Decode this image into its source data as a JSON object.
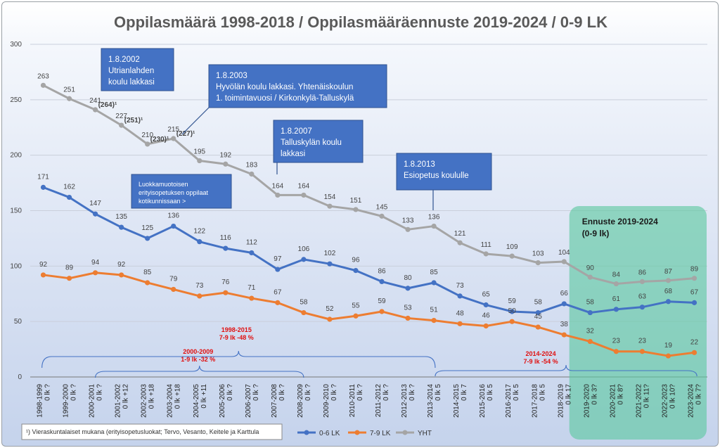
{
  "chart_data": {
    "type": "line",
    "title": "Oppilasmäärä 1998-2018 / Oppilasmääräennuste 2019-2024 / 0-9 LK",
    "ylim": [
      0,
      300
    ],
    "yticks": [
      "0",
      "50",
      "100",
      "150",
      "200",
      "250",
      "300"
    ],
    "grid": true,
    "legend_position": "bottom",
    "categories": [
      "1998-1999",
      "1999-2000",
      "2000-2001",
      "2001-2002",
      "2002-2003",
      "2003-2004",
      "2004-2005",
      "2005-2006",
      "2006-2007",
      "2007-2008",
      "2008-2009",
      "2009-2010",
      "2010-2011",
      "2011-2012",
      "2012-2013",
      "2013-2014",
      "2014-2015",
      "2015-2016",
      "2016-2017",
      "2017-2018",
      "2018-2019",
      "2019-2020",
      "2020-2021",
      "2021-2022",
      "2022-2023",
      "2023-2024"
    ],
    "category_sublabels": [
      "0 lk ?",
      "0 lk ?",
      "0 lk ?",
      "0 lk +12",
      "0 lk +18",
      "0 lk +18",
      "0 lk +11",
      "0 lk ?",
      "0 lk ?",
      "0 lk ?",
      "0 lk ?",
      "0 lk ?",
      "0 lk ?",
      "0 lk ?",
      "0 lk ?",
      "0 lk 5",
      "0 lk 7",
      "0 lk 5",
      "0 lk 5",
      "0 lk 5",
      "0 lk 17",
      "0 lk 3?",
      "0 lk 8?",
      "0 lk 11?",
      "0 lk 10?",
      "0 lk 7?"
    ],
    "series": [
      {
        "name": "0-6 LK",
        "color": "#4472c4",
        "values": [
          171,
          162,
          147,
          135,
          125,
          136,
          122,
          116,
          112,
          97,
          106,
          102,
          96,
          86,
          80,
          85,
          73,
          65,
          59,
          58,
          66,
          58,
          61,
          63,
          68,
          67
        ],
        "labels": [
          "171",
          "162",
          "147",
          "135",
          "125",
          "136",
          "122",
          "116",
          "112",
          "97",
          "106",
          "102",
          "96",
          "86",
          "80",
          "85",
          "73",
          "65",
          "59",
          "58",
          "66",
          "58",
          "61",
          "63",
          "68",
          "67"
        ]
      },
      {
        "name": "7-9 LK",
        "color": "#ed7d31",
        "values": [
          92,
          89,
          94,
          92,
          85,
          79,
          73,
          76,
          71,
          67,
          58,
          52,
          55,
          59,
          53,
          51,
          48,
          46,
          50,
          45,
          38,
          32,
          23,
          23,
          19,
          22
        ],
        "labels": [
          "92",
          "89",
          "94",
          "92",
          "85",
          "79",
          "73",
          "76",
          "71",
          "67",
          "58",
          "52",
          "55",
          "59",
          "53",
          "51",
          "48",
          "46",
          "50",
          "45",
          "38",
          "32",
          "23",
          "23",
          "19",
          "22"
        ]
      },
      {
        "name": "YHT",
        "color": "#a5a5a5",
        "values": [
          263,
          251,
          241,
          227,
          210,
          215,
          195,
          192,
          183,
          164,
          164,
          154,
          151,
          145,
          133,
          136,
          121,
          111,
          109,
          103,
          104,
          90,
          84,
          86,
          87,
          89
        ],
        "labels": [
          "263",
          "251",
          "241",
          "227",
          "210",
          "215",
          "195",
          "192",
          "183",
          "164",
          "164",
          "154",
          "151",
          "145",
          "133",
          "136",
          "121",
          "111",
          "109",
          "103",
          "104",
          "90",
          "84",
          "86",
          "87",
          "89"
        ]
      }
    ],
    "extra_labels": [
      {
        "text": "(264)¹",
        "at": 2,
        "value": 241
      },
      {
        "text": "(251)¹",
        "at": 3,
        "value": 227
      },
      {
        "text": "(230)¹",
        "at": 4,
        "value": 210
      },
      {
        "text": "(227)¹",
        "at": 5,
        "value": 215
      }
    ],
    "annotations": [
      {
        "lines": [
          "1.8.2002",
          "Utrianlahden",
          "koulu lakkasi"
        ]
      },
      {
        "lines": [
          "1.8.2003",
          "Hyvölän koulu lakkasi. Yhtenäiskoulun",
          "1. toimintavuosi / Kirkonkylä-Talluskylä"
        ]
      },
      {
        "lines": [
          "1.8.2007",
          "Talluskylän koulu",
          "lakkasi"
        ]
      },
      {
        "lines": [
          "1.8.2013",
          "Esiopetus koululle"
        ]
      },
      {
        "lines": [
          "Luokkamuotoisen",
          "erityisopetuksen oppilaat",
          "kotikunnissaan >"
        ]
      }
    ],
    "braces": [
      {
        "lines": [
          "1998-2015",
          "7-9 lk -48 %"
        ]
      },
      {
        "lines": [
          "2000-2009",
          "1-9 lk -32 %"
        ]
      },
      {
        "lines": [
          "2014-2024",
          "7-9 lk -54 %"
        ]
      }
    ],
    "forecast": {
      "lines": [
        "Ennuste 2019-2024",
        "(0-9 lk)"
      ],
      "color": "#5cc8a0"
    },
    "footnote": "¹) Vieraskuntalaiset mukana (erityisopetusluokat; Tervo, Vesanto, Keitele ja Karttula"
  }
}
